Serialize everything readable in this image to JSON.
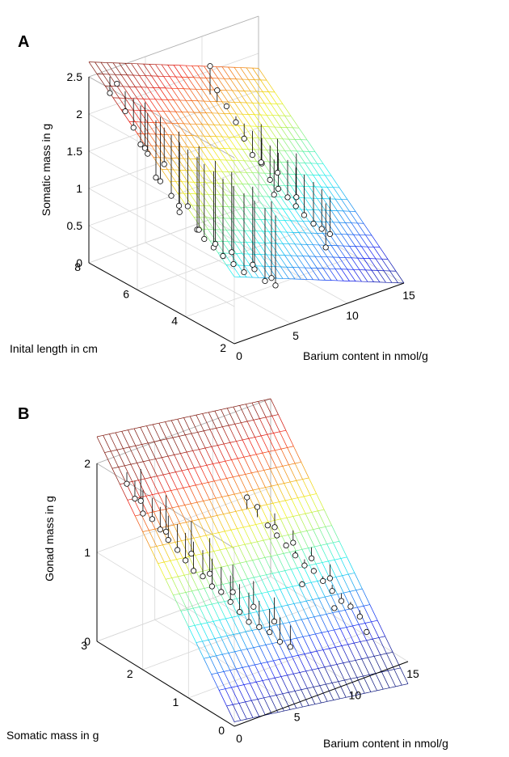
{
  "chart_data": [
    {
      "panel_label": "A",
      "type": "surface3d",
      "zlabel": "Somatic mass in g",
      "ylabel": "Inital length in cm",
      "xlabel": "Barium content in nmol/g",
      "x_ticks": [
        "0",
        "5",
        "10",
        "15"
      ],
      "y_ticks": [
        "2",
        "4",
        "6",
        "8"
      ],
      "z_ticks": [
        "0",
        "0.5",
        "1",
        "1.5",
        "2",
        "2.5"
      ],
      "xlim": [
        0,
        15
      ],
      "ylim": [
        2,
        8
      ],
      "zlim": [
        0,
        2.5
      ],
      "surface": {
        "type": "plane",
        "z_at_origin": 0.3,
        "dz_dx": -0.06,
        "dz_dy": 0.3,
        "colormap": "jet",
        "mesh": "wireframe"
      },
      "series": [
        {
          "points": [
            [
              1.0,
              7.6,
              2.3
            ],
            [
              1.2,
              7.4,
              2.45
            ],
            [
              1.5,
              7.2,
              2.1
            ],
            [
              1.8,
              7.0,
              1.9
            ],
            [
              2.0,
              6.8,
              1.7
            ],
            [
              2.2,
              6.6,
              1.6
            ],
            [
              2.5,
              6.4,
              1.3
            ],
            [
              2.8,
              6.2,
              1.5
            ],
            [
              3.0,
              6.0,
              1.1
            ],
            [
              3.3,
              5.8,
              0.9
            ],
            [
              3.6,
              5.6,
              1.0
            ],
            [
              4.0,
              5.4,
              0.7
            ],
            [
              4.2,
              5.2,
              0.6
            ],
            [
              4.6,
              5.0,
              0.5
            ],
            [
              5.0,
              4.8,
              0.4
            ],
            [
              5.5,
              4.6,
              0.3
            ],
            [
              6.0,
              4.4,
              0.2
            ],
            [
              6.5,
              4.2,
              0.25
            ],
            [
              7.0,
              4.0,
              0.1
            ],
            [
              7.5,
              3.8,
              0.05
            ],
            [
              2.6,
              6.9,
              1.6
            ],
            [
              3.1,
              6.5,
              1.2
            ],
            [
              3.9,
              6.1,
              0.9
            ],
            [
              4.8,
              5.7,
              0.6
            ],
            [
              5.4,
              5.3,
              0.45
            ],
            [
              6.2,
              5.0,
              0.35
            ],
            [
              7.2,
              4.6,
              0.2
            ],
            [
              8.0,
              4.2,
              0.05
            ],
            [
              9.0,
              7.2,
              2.3
            ],
            [
              9.2,
              7.0,
              2.0
            ],
            [
              9.6,
              6.8,
              1.8
            ],
            [
              10.0,
              6.6,
              1.6
            ],
            [
              10.3,
              6.4,
              1.4
            ],
            [
              10.6,
              6.2,
              1.2
            ],
            [
              11.0,
              6.0,
              1.1
            ],
            [
              11.3,
              5.8,
              0.9
            ],
            [
              11.6,
              5.6,
              0.8
            ],
            [
              12.0,
              5.4,
              0.7
            ],
            [
              12.3,
              5.2,
              0.6
            ],
            [
              12.6,
              5.0,
              0.5
            ],
            [
              13.0,
              4.8,
              0.4
            ],
            [
              13.3,
              4.6,
              0.35
            ],
            [
              13.6,
              4.4,
              0.3
            ],
            [
              11.8,
              6.4,
              1.0
            ],
            [
              12.4,
              6.0,
              0.9
            ],
            [
              13.2,
              5.6,
              0.6
            ],
            [
              10.8,
              5.4,
              0.8
            ],
            [
              12.8,
              4.2,
              0.2
            ]
          ]
        }
      ]
    },
    {
      "panel_label": "B",
      "type": "surface3d",
      "zlabel": "Gonad mass in g",
      "ylabel": "Somatic mass in g",
      "xlabel": "Barium content in nmol/g",
      "x_ticks": [
        "0",
        "5",
        "10",
        "15"
      ],
      "y_ticks": [
        "0",
        "1",
        "2",
        "3"
      ],
      "z_ticks": [
        "0",
        "1",
        "2"
      ],
      "xlim": [
        0,
        15
      ],
      "ylim": [
        0,
        3
      ],
      "zlim": [
        0,
        2
      ],
      "surface": {
        "type": "plane",
        "z_at_origin": 0.05,
        "dz_dx": -0.02,
        "dz_dy": 0.75,
        "colormap": "jet",
        "mesh": "wireframe"
      },
      "series": [
        {
          "points": [
            [
              1.0,
              2.6,
              1.85
            ],
            [
              1.3,
              2.5,
              1.7
            ],
            [
              1.6,
              2.4,
              1.55
            ],
            [
              2.0,
              2.3,
              1.5
            ],
            [
              2.3,
              2.2,
              1.4
            ],
            [
              2.6,
              2.1,
              1.3
            ],
            [
              3.0,
              2.0,
              1.2
            ],
            [
              3.3,
              1.9,
              1.1
            ],
            [
              3.6,
              1.8,
              1.0
            ],
            [
              4.0,
              1.7,
              0.95
            ],
            [
              4.4,
              1.6,
              0.85
            ],
            [
              4.8,
              1.5,
              0.8
            ],
            [
              5.2,
              1.4,
              0.7
            ],
            [
              5.6,
              1.3,
              0.6
            ],
            [
              6.0,
              1.2,
              0.5
            ],
            [
              6.5,
              1.1,
              0.45
            ],
            [
              7.0,
              1.0,
              0.4
            ],
            [
              7.5,
              0.9,
              0.3
            ],
            [
              8.0,
              0.8,
              0.25
            ],
            [
              2.2,
              2.6,
              1.6
            ],
            [
              3.2,
              2.3,
              1.3
            ],
            [
              4.2,
              2.0,
              1.1
            ],
            [
              5.0,
              1.8,
              0.9
            ],
            [
              5.8,
              1.5,
              0.75
            ],
            [
              6.8,
              1.3,
              0.6
            ],
            [
              7.8,
              1.1,
              0.45
            ],
            [
              9.0,
              2.0,
              1.5
            ],
            [
              9.5,
              1.9,
              1.4
            ],
            [
              10.0,
              1.8,
              1.2
            ],
            [
              10.4,
              1.7,
              1.1
            ],
            [
              10.8,
              1.6,
              1.0
            ],
            [
              11.2,
              1.5,
              0.9
            ],
            [
              11.6,
              1.4,
              0.8
            ],
            [
              12.0,
              1.3,
              0.75
            ],
            [
              12.4,
              1.2,
              0.65
            ],
            [
              12.8,
              1.1,
              0.55
            ],
            [
              13.2,
              1.0,
              0.45
            ],
            [
              13.6,
              0.9,
              0.4
            ],
            [
              14.0,
              0.8,
              0.3
            ],
            [
              11.0,
              1.9,
              1.1
            ],
            [
              11.8,
              1.7,
              0.95
            ],
            [
              12.6,
              1.5,
              0.8
            ],
            [
              13.4,
              1.3,
              0.6
            ],
            [
              10.6,
              1.2,
              0.7
            ],
            [
              12.2,
              0.9,
              0.45
            ],
            [
              13.8,
              0.6,
              0.2
            ]
          ]
        }
      ]
    }
  ]
}
